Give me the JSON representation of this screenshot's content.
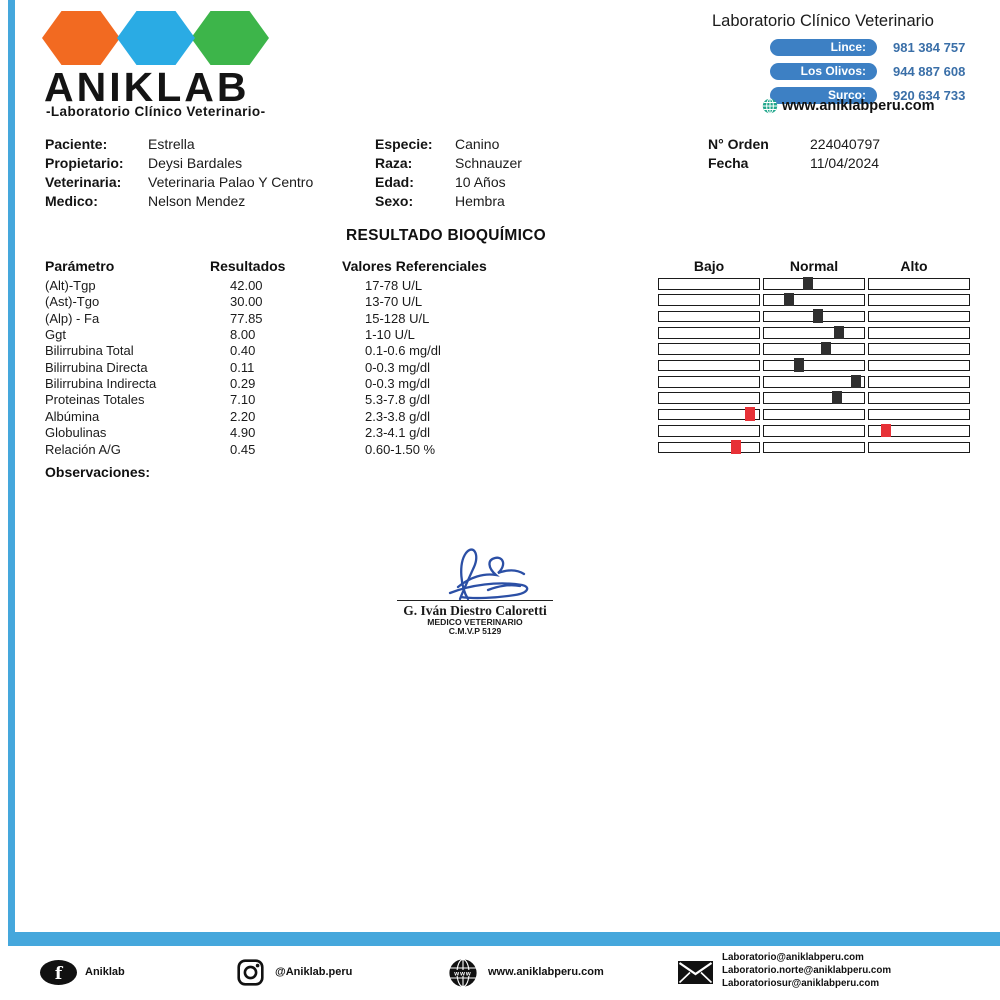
{
  "colors": {
    "frame_blue": "#45a7dc",
    "pill_blue": "#3d80c4",
    "phone_blue": "#3a6fa8",
    "hex_orange": "#f26a21",
    "hex_blue": "#2aabe4",
    "hex_green": "#3db54a",
    "marker_dark": "#2f2f2f",
    "marker_red": "#e73137",
    "signature_blue": "#2b4fa5"
  },
  "header": {
    "logo": {
      "title": "ANIKLAB",
      "subtitle": "-Laboratorio Clínico Veterinario-"
    },
    "contact": {
      "title": "Laboratorio Clínico Veterinario",
      "locations": [
        {
          "label": "Lince:",
          "phone": "981 384 757"
        },
        {
          "label": "Los Olivos:",
          "phone": "944 887 608"
        },
        {
          "label": "Surco:",
          "phone": "920 634 733"
        }
      ],
      "website": "www.aniklabperu.com"
    }
  },
  "patient": {
    "left": [
      {
        "label": "Paciente:",
        "value": "Estrella"
      },
      {
        "label": "Propietario:",
        "value": "Deysi Bardales"
      },
      {
        "label": "Veterinaria:",
        "value": "Veterinaria Palao Y Centro"
      },
      {
        "label": "Medico:",
        "value": "Nelson Mendez"
      }
    ],
    "middle": [
      {
        "label": "Especie:",
        "value": "Canino"
      },
      {
        "label": "Raza:",
        "value": "Schnauzer"
      },
      {
        "label": "Edad:",
        "value": "10 Años"
      },
      {
        "label": "Sexo:",
        "value": "Hembra"
      }
    ],
    "right": [
      {
        "label": "N° Orden",
        "value": "224040797"
      },
      {
        "label": "Fecha",
        "value": "11/04/2024"
      }
    ]
  },
  "report": {
    "title": "RESULTADO BIOQUÍMICO",
    "headers": {
      "param": "Parámetro",
      "result": "Resultados",
      "ref": "Valores Referenciales",
      "low": "Bajo",
      "normal": "Normal",
      "high": "Alto"
    },
    "marker_colors": {
      "dark": "#2f2f2f",
      "red": "#e73137"
    },
    "rows": [
      {
        "param": "(Alt)-Tgp",
        "result": "42.00",
        "ref": "17-78 U/L",
        "marker": {
          "box": "normal",
          "pos": 0.44,
          "color": "dark"
        }
      },
      {
        "param": "(Ast)-Tgo",
        "result": "30.00",
        "ref": "13-70 U/L",
        "marker": {
          "box": "normal",
          "pos": 0.25,
          "color": "dark"
        }
      },
      {
        "param": "(Alp) - Fa",
        "result": "77.85",
        "ref": "15-128 U/L",
        "marker": {
          "box": "normal",
          "pos": 0.55,
          "color": "dark"
        }
      },
      {
        "param": "Ggt",
        "result": "8.00",
        "ref": "1-10 U/L",
        "marker": {
          "box": "normal",
          "pos": 0.76,
          "color": "dark"
        }
      },
      {
        "param": "Bilirrubina Total",
        "result": "0.40",
        "ref": "0.1-0.6 mg/dl",
        "marker": {
          "box": "normal",
          "pos": 0.63,
          "color": "dark"
        }
      },
      {
        "param": "Bilirrubina Directa",
        "result": "0.11",
        "ref": "0-0.3 mg/dl",
        "marker": {
          "box": "normal",
          "pos": 0.35,
          "color": "dark"
        }
      },
      {
        "param": "Bilirrubina Indirecta",
        "result": "0.29",
        "ref": "0-0.3 mg/dl",
        "marker": {
          "box": "normal",
          "pos": 0.93,
          "color": "dark"
        }
      },
      {
        "param": "Proteinas Totales",
        "result": "7.10",
        "ref": "5.3-7.8 g/dl",
        "marker": {
          "box": "normal",
          "pos": 0.74,
          "color": "dark"
        }
      },
      {
        "param": "Albúmina",
        "result": "2.20",
        "ref": "2.3-3.8 g/dl",
        "marker": {
          "box": "low",
          "pos": 0.92,
          "color": "red"
        }
      },
      {
        "param": "Globulinas",
        "result": "4.90",
        "ref": "2.3-4.1 g/dl",
        "marker": {
          "box": "high",
          "pos": 0.17,
          "color": "red"
        }
      },
      {
        "param": "Relación A/G",
        "result": "0.45",
        "ref": "0.60-1.50 %",
        "marker": {
          "box": "low",
          "pos": 0.78,
          "color": "red"
        }
      }
    ]
  },
  "observations": {
    "label": "Observaciones:"
  },
  "signature": {
    "name": "G. Iván Diestro Caloretti",
    "role": "MEDICO VETERINARIO",
    "reg": "C.M.V.P 5129"
  },
  "footer": {
    "facebook_label": "Aniklab",
    "instagram_label": "@Aniklab.peru",
    "website": "www.aniklabperu.com",
    "emails": [
      "Laboratorio@aniklabperu.com",
      "Laboratorio.norte@aniklabperu.com",
      "Laboratoriosur@aniklabperu.com"
    ]
  }
}
